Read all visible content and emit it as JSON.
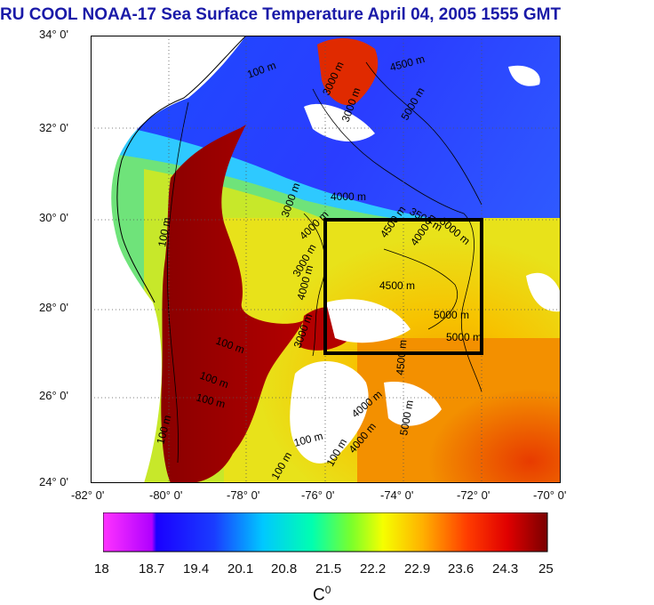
{
  "title": "RU COOL  NOAA-17 Sea Surface Temperature April 04, 2005 1555 GMT",
  "latitude_labels": [
    "34° 0'",
    "32° 0'",
    "30° 0'",
    "28° 0'",
    "26° 0'",
    "24° 0'"
  ],
  "longitude_labels": [
    "-82° 0'",
    "-80° 0'",
    "-78° 0'",
    "-76° 0'",
    "-74° 0'",
    "-72° 0'",
    "-70° 0'"
  ],
  "depth_labels": [
    "100 m",
    "3000 m",
    "4500 m",
    "5000 m",
    "4000 m",
    "3000 m",
    "3000 m",
    "4000 m",
    "4500 m",
    "3500 m",
    "4000 m",
    "5000 m",
    "4500 m",
    "5000 m",
    "5000 m",
    "4500 m",
    "5000 m",
    "100 m",
    "100 m",
    "100 m",
    "100 m",
    "100 m",
    "100 m",
    "100 m",
    "100 m",
    "3000 m",
    "3000 m",
    "4000 m",
    "4000 m",
    "4000 m"
  ],
  "colorbar_ticks": [
    "18",
    "18.7",
    "19.4",
    "20.1",
    "20.8",
    "21.5",
    "22.2",
    "22.9",
    "23.6",
    "24.3",
    "25"
  ],
  "colorbar_unit_base": "C",
  "colorbar_unit_sup": "0",
  "colors": {
    "title": "#1a1aa8",
    "cold": "#ff33ff",
    "warm": "#7a0000",
    "land": "#ffffff",
    "box": "#000000"
  }
}
